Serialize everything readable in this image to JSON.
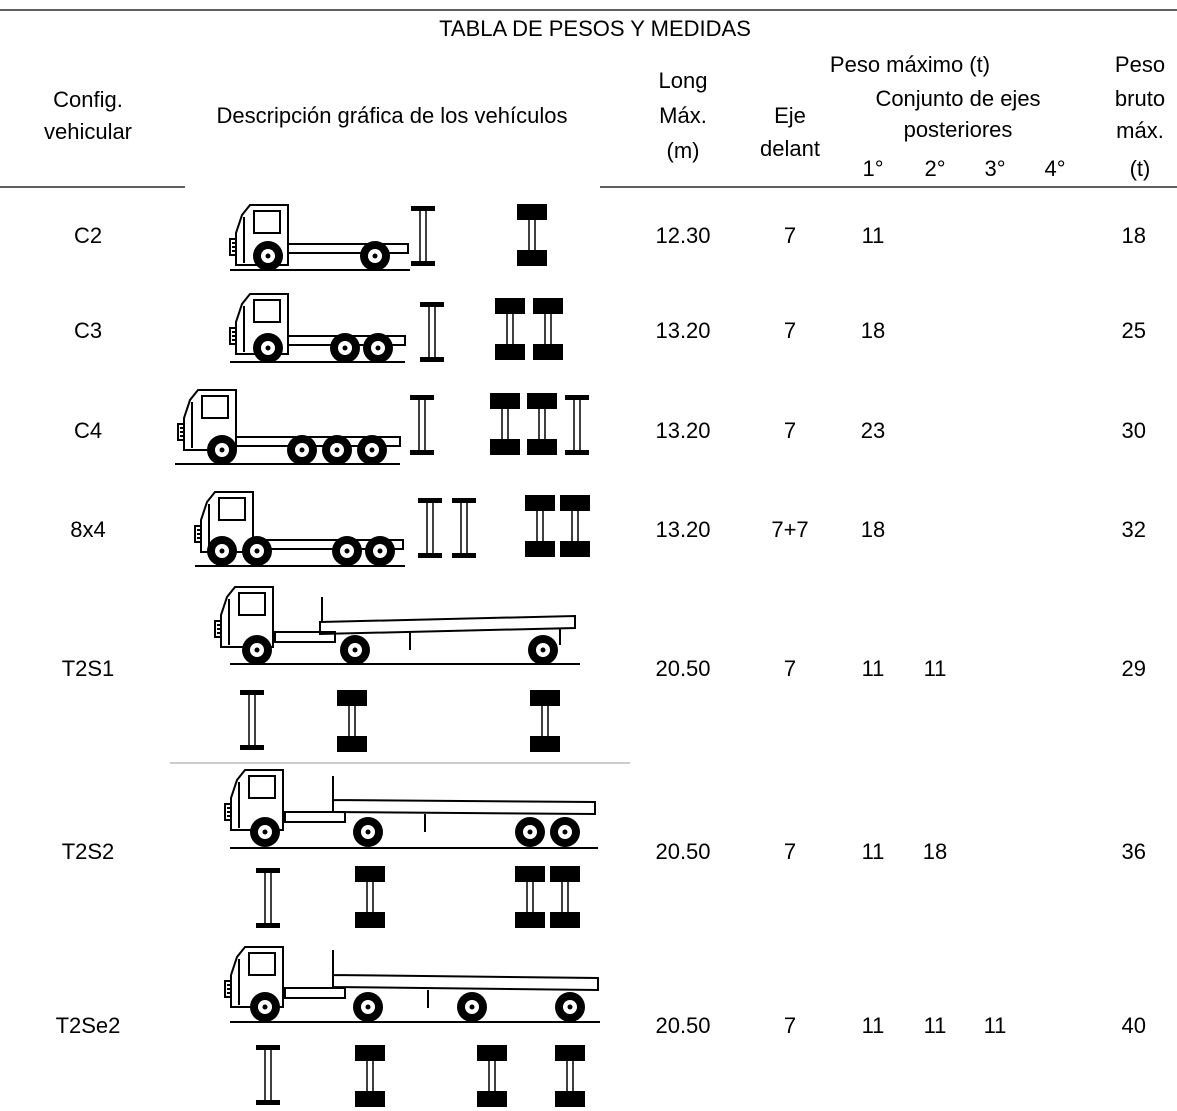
{
  "header": {
    "title": "TABLA DE PESOS Y MEDIDAS",
    "config": [
      "Config.",
      "vehicular"
    ],
    "description": "Descripción gráfica de los vehículos",
    "length": [
      "Long",
      "Máx.",
      "(m)"
    ],
    "max_weight": "Peso máximo (t)",
    "front_axle": [
      "Eje",
      "delant"
    ],
    "rear_axles": [
      "Conjunto de ejes",
      "posteriores"
    ],
    "rear_axle_numbers": [
      "1°",
      "2°",
      "3°",
      "4°"
    ],
    "gross_weight": [
      "Peso",
      "bruto",
      "máx.",
      "(t)"
    ]
  },
  "table": {
    "rows": [
      {
        "config": "C2",
        "length": "12.30",
        "front": "7",
        "rear": [
          "11",
          null,
          null,
          null
        ],
        "gross": "18"
      },
      {
        "config": "C3",
        "length": "13.20",
        "front": "7",
        "rear": [
          "18",
          null,
          null,
          null
        ],
        "gross": "25"
      },
      {
        "config": "C4",
        "length": "13.20",
        "front": "7",
        "rear": [
          "23",
          null,
          null,
          null
        ],
        "gross": "30"
      },
      {
        "config": "8x4",
        "length": "13.20",
        "front": "7+7",
        "rear": [
          "18",
          null,
          null,
          null
        ],
        "gross": "32"
      },
      {
        "config": "T2S1",
        "length": "20.50",
        "front": "7",
        "rear": [
          "11",
          "11",
          null,
          null
        ],
        "gross": "29"
      },
      {
        "config": "T2S2",
        "length": "20.50",
        "front": "7",
        "rear": [
          "11",
          "18",
          null,
          null
        ],
        "gross": "36"
      },
      {
        "config": "T2Se2",
        "length": "20.50",
        "front": "7",
        "rear": [
          "11",
          "11",
          "11",
          null
        ],
        "gross": "40"
      }
    ]
  }
}
